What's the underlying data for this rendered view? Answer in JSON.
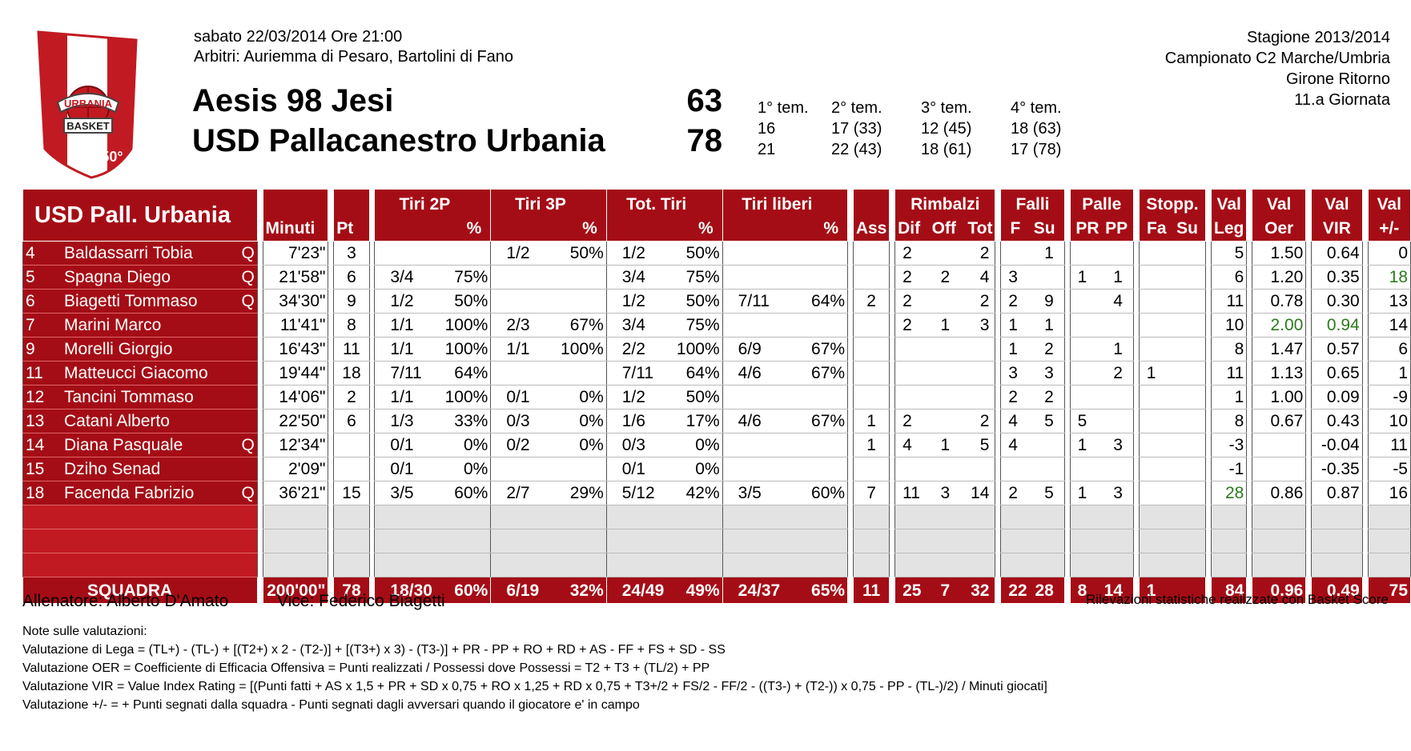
{
  "header": {
    "date": "sabato 22/03/2014 Ore 21:00",
    "referees": "Arbitri: Auriemma di Pesaro, Bartolini di Fano",
    "season": "Stagione 2013/2014",
    "championship": "Campionato C2 Marche/Umbria",
    "round": "Girone Ritorno",
    "day": "11.a Giornata"
  },
  "logo": {
    "text_top": "URBANIA",
    "text_mid": "BASKET",
    "text_bottom": "50°"
  },
  "teams": [
    {
      "name": "Aesis 98 Jesi",
      "score": "63",
      "quarters": [
        "16",
        "17 (33)",
        "12 (45)",
        "18 (63)"
      ]
    },
    {
      "name": "USD Pallacanestro Urbania",
      "score": "78",
      "quarters": [
        "21",
        "22 (43)",
        "18 (61)",
        "17 (78)"
      ]
    }
  ],
  "quarter_labels": [
    "1° tem.",
    "2° tem.",
    "3° tem.",
    "4° tem."
  ],
  "table": {
    "team_label": "USD Pall. Urbania",
    "headers": {
      "minuti": "Minuti",
      "pt": "Pt",
      "tiri2p": "Tiri 2P",
      "tiri3p": "Tiri 3P",
      "tottiri": "Tot. Tiri",
      "tiriliberi": "Tiri liberi",
      "pct": "%",
      "ass": "Ass",
      "rimbalzi": "Rimbalzi",
      "dif": "Dif",
      "off": "Off",
      "tot": "Tot",
      "falli": "Falli",
      "f": "F",
      "su": "Su",
      "palle": "Palle",
      "pr": "PR",
      "pp": "PP",
      "stopp": "Stopp.",
      "fa": "Fa",
      "su2": "Su",
      "val": "Val",
      "leg": "Leg",
      "oer": "Oer",
      "vir": "VIR",
      "pm": "+/-"
    },
    "players": [
      {
        "num": "4",
        "name": "Baldassarri Tobia",
        "q": "Q",
        "min": "7'23\"",
        "pt": "3",
        "t2": "",
        "t2p": "",
        "t3": "1/2",
        "t3p": "50%",
        "tt": "1/2",
        "ttp": "50%",
        "tl": "",
        "tlp": "",
        "ass": "",
        "rd": "2",
        "ro": "",
        "rt": "2",
        "ff": "",
        "fs": "1",
        "pr": "",
        "pp": "",
        "sf": "",
        "ss": "",
        "leg": "5",
        "oer": "1.50",
        "vir": "0.64",
        "pm": "0"
      },
      {
        "num": "5",
        "name": "Spagna Diego",
        "q": "Q",
        "min": "21'58\"",
        "pt": "6",
        "t2": "3/4",
        "t2p": "75%",
        "t3": "",
        "t3p": "",
        "tt": "3/4",
        "ttp": "75%",
        "tl": "",
        "tlp": "",
        "ass": "",
        "rd": "2",
        "ro": "2",
        "rt": "4",
        "ff": "3",
        "fs": "",
        "pr": "1",
        "pp": "1",
        "sf": "",
        "ss": "",
        "leg": "6",
        "oer": "1.20",
        "vir": "0.35",
        "pm": "18"
      },
      {
        "num": "6",
        "name": "Biagetti Tommaso",
        "q": "Q",
        "min": "34'30\"",
        "pt": "9",
        "t2": "1/2",
        "t2p": "50%",
        "t3": "",
        "t3p": "",
        "tt": "1/2",
        "ttp": "50%",
        "tl": "7/11",
        "tlp": "64%",
        "ass": "2",
        "rd": "2",
        "ro": "",
        "rt": "2",
        "ff": "2",
        "fs": "9",
        "pr": "",
        "pp": "4",
        "sf": "",
        "ss": "",
        "leg": "11",
        "oer": "0.78",
        "vir": "0.30",
        "pm": "13"
      },
      {
        "num": "7",
        "name": "Marini Marco",
        "q": "",
        "min": "11'41\"",
        "pt": "8",
        "t2": "1/1",
        "t2p": "100%",
        "t3": "2/3",
        "t3p": "67%",
        "tt": "3/4",
        "ttp": "75%",
        "tl": "",
        "tlp": "",
        "ass": "",
        "rd": "2",
        "ro": "1",
        "rt": "3",
        "ff": "1",
        "fs": "1",
        "pr": "",
        "pp": "",
        "sf": "",
        "ss": "",
        "leg": "10",
        "oer": "2.00",
        "vir": "0.94",
        "pm": "14"
      },
      {
        "num": "9",
        "name": "Morelli Giorgio",
        "q": "",
        "min": "16'43\"",
        "pt": "11",
        "t2": "1/1",
        "t2p": "100%",
        "t3": "1/1",
        "t3p": "100%",
        "tt": "2/2",
        "ttp": "100%",
        "tl": "6/9",
        "tlp": "67%",
        "ass": "",
        "rd": "",
        "ro": "",
        "rt": "",
        "ff": "1",
        "fs": "2",
        "pr": "",
        "pp": "1",
        "sf": "",
        "ss": "",
        "leg": "8",
        "oer": "1.47",
        "vir": "0.57",
        "pm": "6"
      },
      {
        "num": "11",
        "name": "Matteucci Giacomo",
        "q": "",
        "min": "19'44\"",
        "pt": "18",
        "t2": "7/11",
        "t2p": "64%",
        "t3": "",
        "t3p": "",
        "tt": "7/11",
        "ttp": "64%",
        "tl": "4/6",
        "tlp": "67%",
        "ass": "",
        "rd": "",
        "ro": "",
        "rt": "",
        "ff": "3",
        "fs": "3",
        "pr": "",
        "pp": "2",
        "sf": "1",
        "ss": "",
        "leg": "11",
        "oer": "1.13",
        "vir": "0.65",
        "pm": "1"
      },
      {
        "num": "12",
        "name": "Tancini Tommaso",
        "q": "",
        "min": "14'06\"",
        "pt": "2",
        "t2": "1/1",
        "t2p": "100%",
        "t3": "0/1",
        "t3p": "0%",
        "tt": "1/2",
        "ttp": "50%",
        "tl": "",
        "tlp": "",
        "ass": "",
        "rd": "",
        "ro": "",
        "rt": "",
        "ff": "2",
        "fs": "2",
        "pr": "",
        "pp": "",
        "sf": "",
        "ss": "",
        "leg": "1",
        "oer": "1.00",
        "vir": "0.09",
        "pm": "-9"
      },
      {
        "num": "13",
        "name": "Catani Alberto",
        "q": "",
        "min": "22'50\"",
        "pt": "6",
        "t2": "1/3",
        "t2p": "33%",
        "t3": "0/3",
        "t3p": "0%",
        "tt": "1/6",
        "ttp": "17%",
        "tl": "4/6",
        "tlp": "67%",
        "ass": "1",
        "rd": "2",
        "ro": "",
        "rt": "2",
        "ff": "4",
        "fs": "5",
        "pr": "5",
        "pp": "",
        "sf": "",
        "ss": "",
        "leg": "8",
        "oer": "0.67",
        "vir": "0.43",
        "pm": "10"
      },
      {
        "num": "14",
        "name": "Diana Pasquale",
        "q": "Q",
        "min": "12'34\"",
        "pt": "",
        "t2": "0/1",
        "t2p": "0%",
        "t3": "0/2",
        "t3p": "0%",
        "tt": "0/3",
        "ttp": "0%",
        "tl": "",
        "tlp": "",
        "ass": "1",
        "rd": "4",
        "ro": "1",
        "rt": "5",
        "ff": "4",
        "fs": "",
        "pr": "1",
        "pp": "3",
        "sf": "",
        "ss": "",
        "leg": "-3",
        "oer": "",
        "vir": "-0.04",
        "pm": "11"
      },
      {
        "num": "15",
        "name": "Dziho Senad",
        "q": "",
        "min": "2'09\"",
        "pt": "",
        "t2": "0/1",
        "t2p": "0%",
        "t3": "",
        "t3p": "",
        "tt": "0/1",
        "ttp": "0%",
        "tl": "",
        "tlp": "",
        "ass": "",
        "rd": "",
        "ro": "",
        "rt": "",
        "ff": "",
        "fs": "",
        "pr": "",
        "pp": "",
        "sf": "",
        "ss": "",
        "leg": "-1",
        "oer": "",
        "vir": "-0.35",
        "pm": "-5"
      },
      {
        "num": "18",
        "name": "Facenda Fabrizio",
        "q": "Q",
        "min": "36'21\"",
        "pt": "15",
        "t2": "3/5",
        "t2p": "60%",
        "t3": "2/7",
        "t3p": "29%",
        "tt": "5/12",
        "ttp": "42%",
        "tl": "3/5",
        "tlp": "60%",
        "ass": "7",
        "rd": "11",
        "ro": "3",
        "rt": "14",
        "ff": "2",
        "fs": "5",
        "pr": "1",
        "pp": "3",
        "sf": "",
        "ss": "",
        "leg": "28",
        "oer": "0.86",
        "vir": "0.87",
        "pm": "16"
      }
    ],
    "green_cells": [
      "1.pm",
      "3.oer",
      "3.vir",
      "10.leg"
    ],
    "totals": {
      "label": "SQUADRA",
      "min": "200'00\"",
      "pt": "78",
      "t2": "18/30",
      "t2p": "60%",
      "t3": "6/19",
      "t3p": "32%",
      "tt": "24/49",
      "ttp": "49%",
      "tl": "24/37",
      "tlp": "65%",
      "ass": "11",
      "rd": "25",
      "ro": "7",
      "rt": "32",
      "ff": "22",
      "fs": "28",
      "pr": "8",
      "pp": "14",
      "sf": "1",
      "ss": "",
      "leg": "84",
      "oer": "0.96",
      "vir": "0.49",
      "pm": "75"
    }
  },
  "footer": {
    "coach": "Allenatore: Alberto D'Amato",
    "vice": "Vice: Federico Biagetti",
    "credit": "Rilevazioni statistiche realizzate con Basket Score",
    "notes": [
      "Note sulle valutazioni:",
      "Valutazione di Lega = (TL+) - (TL-) + [(T2+) x 2 - (T2-)] + [(T3+) x 3) - (T3-)] + PR - PP + RO + RD + AS - FF + FS + SD - SS",
      "Valutazione OER = Coefficiente di Efficacia Offensiva =  Punti realizzati / Possessi      dove Possessi = T2 + T3 + (TL/2) + PP",
      "Valutazione VIR = Value Index Rating = [(Punti fatti + AS x 1,5 + PR + SD x 0,75 + RO x 1,25 + RD x 0,75 + T3+/2 + FS/2 - FF/2 - ((T3-) + (T2-)) x 0,75 - PP - (TL-)/2) / Minuti giocati]",
      "Valutazione +/- = + Punti segnati dalla squadra - Punti segnati dagli avversari quando il giocatore e' in campo"
    ]
  }
}
